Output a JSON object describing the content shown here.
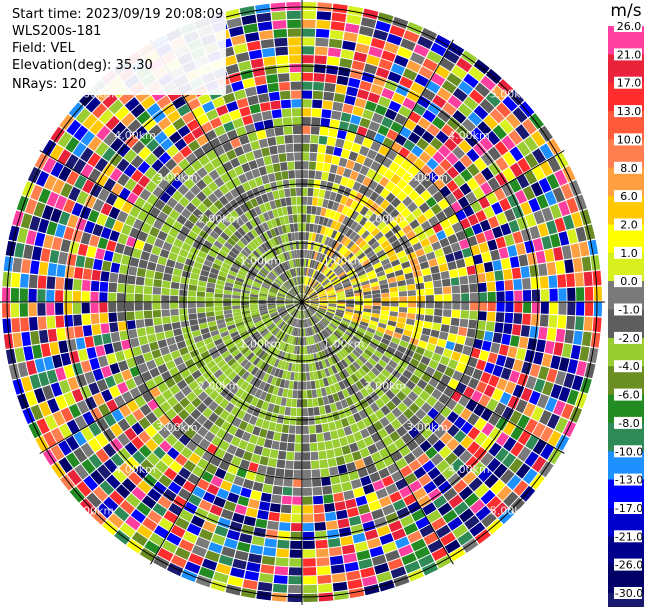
{
  "header": {
    "start_time": "Start time: 2023/09/19 20:08:09",
    "instrument": "WLS200s-181",
    "field": "Field: VEL",
    "elevation": "Elevation(deg): 35.30",
    "nrays": "NRays: 120"
  },
  "colorbar": {
    "unit": "m/s",
    "ticks": [
      "26.0",
      "21.0",
      "17.0",
      "13.0",
      "10.0",
      "8.0",
      "6.0",
      "2.0",
      "1.0",
      "0.0",
      "-1.0",
      "-2.0",
      "-4.0",
      "-6.0",
      "-8.0",
      "-10.0",
      "-13.0",
      "-17.0",
      "-21.0",
      "-26.0",
      "-30.0"
    ],
    "colors": [
      "#ff3fa0",
      "#e8233a",
      "#ff2d2d",
      "#ff5a3c",
      "#ff7f50",
      "#ffa040",
      "#ffc800",
      "#ffff00",
      "#d8f020",
      "#7a7a7a",
      "#5e5e5e",
      "#9acd32",
      "#6b8e23",
      "#228b22",
      "#2e8b57",
      "#1e90ff",
      "#0000ff",
      "#0000cd",
      "#00008b",
      "#000066",
      "#191970"
    ]
  },
  "chart_data": {
    "type": "heatmap",
    "subtype": "polar PPI scan",
    "field": "VEL",
    "units": "m/s",
    "nrays": 120,
    "range_rings_km": [
      1.0,
      2.0,
      3.0,
      4.0,
      5.0
    ],
    "ring_labels": [
      "1.00km",
      "2.00km",
      "3.00km",
      "4.00km",
      "5.00km"
    ],
    "max_range_km": 5.1,
    "color_scale": {
      "min": -30.0,
      "max": 26.0
    },
    "patterns": [
      {
        "region": "north-east inner area",
        "range_km": [
          0.0,
          2.6
        ],
        "approx_velocity_ms": 2.0
      },
      {
        "region": "south-west inner area",
        "range_km": [
          0.0,
          2.9
        ],
        "approx_velocity_ms": -2.0
      },
      {
        "region": "outer range",
        "range_km": [
          2.9,
          5.1
        ],
        "approx_velocity_ms": "noise (mixed values)"
      }
    ],
    "grid": true
  }
}
